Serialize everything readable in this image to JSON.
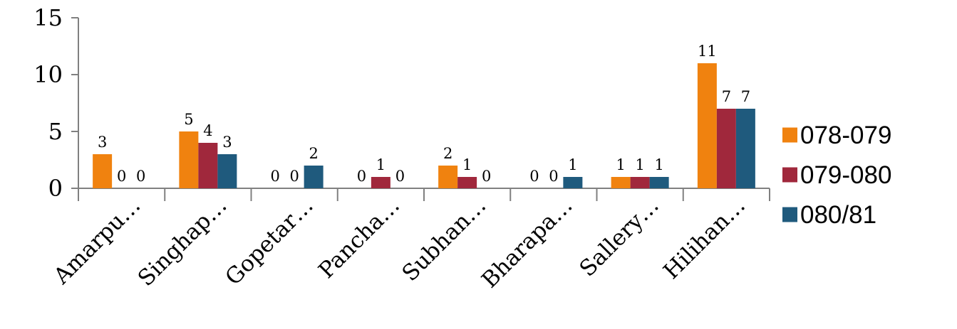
{
  "chart_data": {
    "type": "bar",
    "categories": [
      "Amarpu…",
      "Singhap…",
      "Gopetar…",
      "Pancha…",
      "Subhan…",
      "Bharapa…",
      "Sallery…",
      "Hilihan…"
    ],
    "series": [
      {
        "name": "078-079",
        "color": "#F0820F",
        "values": [
          3,
          5,
          0,
          0,
          2,
          0,
          1,
          11
        ]
      },
      {
        "name": "079-080",
        "color": "#A0283C",
        "values": [
          0,
          4,
          0,
          1,
          1,
          0,
          1,
          7
        ]
      },
      {
        "name": "080/81",
        "color": "#1F5A7D",
        "values": [
          0,
          3,
          2,
          0,
          0,
          1,
          1,
          7
        ]
      }
    ],
    "ylim": [
      0,
      15
    ],
    "yticks": [
      0,
      5,
      10,
      15
    ],
    "data_labels": true,
    "grid": false,
    "legend_position": "right",
    "title": "",
    "xlabel": "",
    "ylabel": ""
  }
}
